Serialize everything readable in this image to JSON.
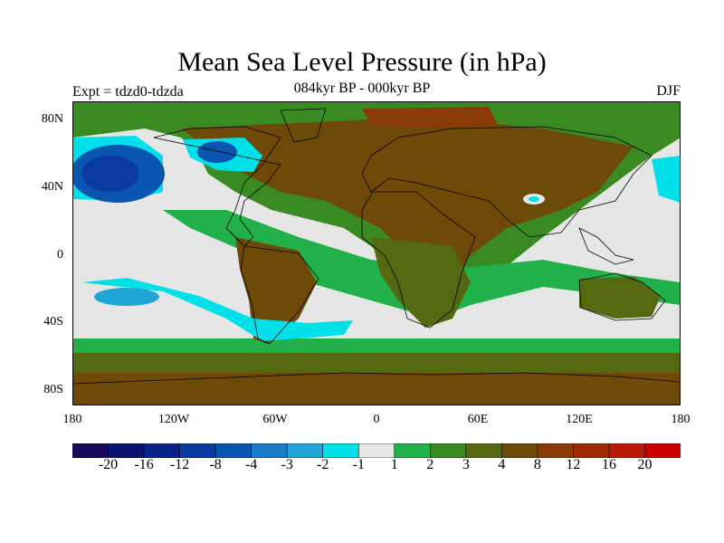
{
  "title": "Mean Sea Level Pressure (in hPa)",
  "subtitle": "084kyr BP - 000kyr BP",
  "experiment": "Expt = tdzd0-tdzda",
  "season": "DJF",
  "lat_labels": [
    "80N",
    "40N",
    "0",
    "40S",
    "80S"
  ],
  "lon_labels": [
    "180",
    "120W",
    "60W",
    "0",
    "60E",
    "120E",
    "180"
  ],
  "colorbar": {
    "labels": [
      "-20",
      "-16",
      "-12",
      "-8",
      "-4",
      "-3",
      "-2",
      "-1",
      "1",
      "2",
      "3",
      "4",
      "8",
      "12",
      "16",
      "20"
    ],
    "colors": [
      "#1a0a5e",
      "#0a1470",
      "#0a2288",
      "#0a3aa0",
      "#0a55b0",
      "#1a7ac8",
      "#22a6d8",
      "#00e0e8",
      "#e6e6e6",
      "#22b04a",
      "#3a8a22",
      "#556a10",
      "#6e4a08",
      "#8a3a06",
      "#a02a06",
      "#b81a06",
      "#cc0000"
    ]
  },
  "map": {
    "background_color": "#e6e6e6",
    "land_color": "#6e4a08",
    "mid_green": "#22b04a",
    "dark_green": "#3a8a22",
    "olive": "#556a10",
    "red_brown": "#8a3a06",
    "cyan": "#00e0e8",
    "blue_low": "#0a55b0",
    "deep_blue": "#0a3aa0"
  }
}
